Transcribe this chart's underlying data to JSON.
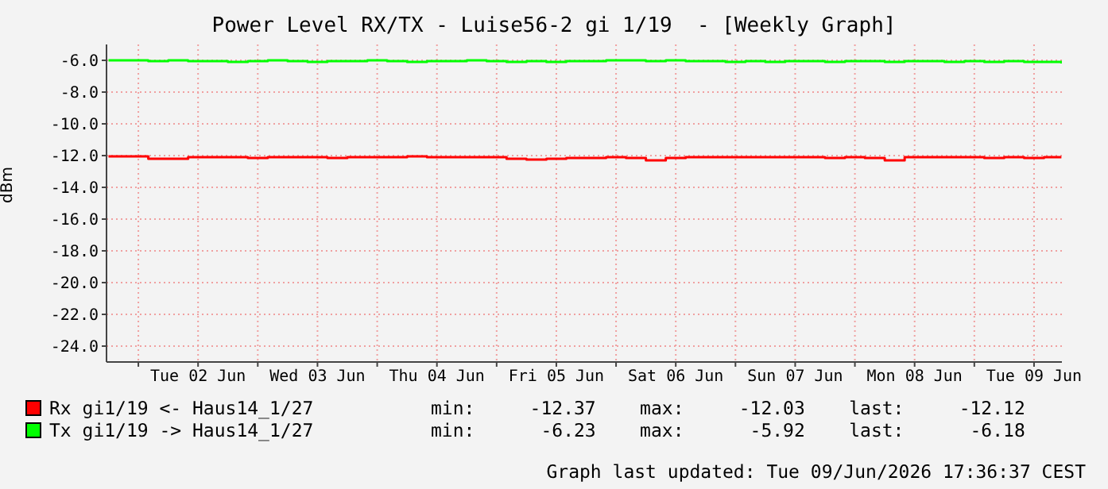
{
  "chart_data": {
    "type": "step",
    "title": "Power Level RX/TX - Luise56-2 gi 1/19  - [Weekly Graph]",
    "ylabel": "dBm",
    "x": [
      "2026-06-01T18:00",
      "2026-06-01T22:00",
      "2026-06-02T02:00",
      "2026-06-02T06:00",
      "2026-06-02T10:00",
      "2026-06-02T14:00",
      "2026-06-02T18:00",
      "2026-06-02T22:00",
      "2026-06-03T02:00",
      "2026-06-03T06:00",
      "2026-06-03T10:00",
      "2026-06-03T14:00",
      "2026-06-03T18:00",
      "2026-06-03T22:00",
      "2026-06-04T02:00",
      "2026-06-04T06:00",
      "2026-06-04T10:00",
      "2026-06-04T14:00",
      "2026-06-04T18:00",
      "2026-06-04T22:00",
      "2026-06-05T02:00",
      "2026-06-05T06:00",
      "2026-06-05T10:00",
      "2026-06-05T14:00",
      "2026-06-05T18:00",
      "2026-06-05T22:00",
      "2026-06-06T02:00",
      "2026-06-06T06:00",
      "2026-06-06T10:00",
      "2026-06-06T14:00",
      "2026-06-06T18:00",
      "2026-06-06T22:00",
      "2026-06-07T02:00",
      "2026-06-07T06:00",
      "2026-06-07T10:00",
      "2026-06-07T14:00",
      "2026-06-07T18:00",
      "2026-06-07T22:00",
      "2026-06-08T02:00",
      "2026-06-08T06:00",
      "2026-06-08T10:00",
      "2026-06-08T14:00",
      "2026-06-08T18:00",
      "2026-06-08T22:00",
      "2026-06-09T02:00",
      "2026-06-09T06:00",
      "2026-06-09T10:00",
      "2026-06-09T14:00",
      "2026-06-09T17:30"
    ],
    "series": [
      {
        "name": "Rx gi1/19 <- Haus14_1/27",
        "color": "#ff0000",
        "values": [
          -12.05,
          -12.05,
          -12.2,
          -12.2,
          -12.1,
          -12.1,
          -12.1,
          -12.15,
          -12.1,
          -12.1,
          -12.1,
          -12.15,
          -12.1,
          -12.1,
          -12.1,
          -12.05,
          -12.1,
          -12.1,
          -12.1,
          -12.1,
          -12.2,
          -12.25,
          -12.2,
          -12.15,
          -12.15,
          -12.1,
          -12.15,
          -12.3,
          -12.15,
          -12.1,
          -12.1,
          -12.1,
          -12.1,
          -12.1,
          -12.1,
          -12.1,
          -12.15,
          -12.1,
          -12.15,
          -12.3,
          -12.1,
          -12.1,
          -12.1,
          -12.1,
          -12.15,
          -12.1,
          -12.15,
          -12.1,
          -12.1
        ]
      },
      {
        "name": "Tx gi1/19 -> Haus14_1/27",
        "color": "#00ff00",
        "values": [
          -6.0,
          -6.0,
          -6.05,
          -6.0,
          -6.05,
          -6.05,
          -6.1,
          -6.05,
          -6.0,
          -6.05,
          -6.1,
          -6.05,
          -6.05,
          -6.0,
          -6.05,
          -6.1,
          -6.05,
          -6.05,
          -6.0,
          -6.05,
          -6.1,
          -6.05,
          -6.1,
          -6.05,
          -6.05,
          -6.0,
          -6.0,
          -6.05,
          -6.0,
          -6.05,
          -6.05,
          -6.1,
          -6.05,
          -6.1,
          -6.05,
          -6.05,
          -6.1,
          -6.05,
          -6.05,
          -6.1,
          -6.05,
          -6.05,
          -6.1,
          -6.05,
          -6.1,
          -6.05,
          -6.1,
          -6.1,
          -6.2
        ]
      }
    ],
    "xlim": [
      "2026-06-01T17:36",
      "2026-06-09T17:36"
    ],
    "xticks": [
      {
        "value": "2026-06-02T00:00",
        "label": null
      },
      {
        "value": "2026-06-02T12:00",
        "label": "Tue 02 Jun"
      },
      {
        "value": "2026-06-03T00:00",
        "label": null
      },
      {
        "value": "2026-06-03T12:00",
        "label": "Wed 03 Jun"
      },
      {
        "value": "2026-06-04T00:00",
        "label": null
      },
      {
        "value": "2026-06-04T12:00",
        "label": "Thu 04 Jun"
      },
      {
        "value": "2026-06-05T00:00",
        "label": null
      },
      {
        "value": "2026-06-05T12:00",
        "label": "Fri 05 Jun"
      },
      {
        "value": "2026-06-06T00:00",
        "label": null
      },
      {
        "value": "2026-06-06T12:00",
        "label": "Sat 06 Jun"
      },
      {
        "value": "2026-06-07T00:00",
        "label": null
      },
      {
        "value": "2026-06-07T12:00",
        "label": "Sun 07 Jun"
      },
      {
        "value": "2026-06-08T00:00",
        "label": null
      },
      {
        "value": "2026-06-08T12:00",
        "label": "Mon 08 Jun"
      },
      {
        "value": "2026-06-09T00:00",
        "label": null
      },
      {
        "value": "2026-06-09T12:00",
        "label": "Tue 09 Jun"
      }
    ],
    "ylim": [
      -25,
      -5
    ],
    "yticks": [
      {
        "value": -6,
        "label": "-6.0"
      },
      {
        "value": -8,
        "label": "-8.0"
      },
      {
        "value": -10,
        "label": "-10.0"
      },
      {
        "value": -12,
        "label": "-12.0"
      },
      {
        "value": -14,
        "label": "-14.0"
      },
      {
        "value": -16,
        "label": "-16.0"
      },
      {
        "value": -18,
        "label": "-18.0"
      },
      {
        "value": -20,
        "label": "-20.0"
      },
      {
        "value": -22,
        "label": "-22.0"
      },
      {
        "value": -24,
        "label": "-24.0"
      }
    ],
    "grid": true,
    "legend": "bottom",
    "line_style": "solid",
    "marker": "none",
    "annotations": [
      "min:     -12.37    max:     -12.03    last:     -12.12",
      "min:      -6.23    max:      -5.92    last:      -6.18",
      "Graph last updated: Tue 09/Jun/2026 17:36:37 CEST"
    ]
  }
}
